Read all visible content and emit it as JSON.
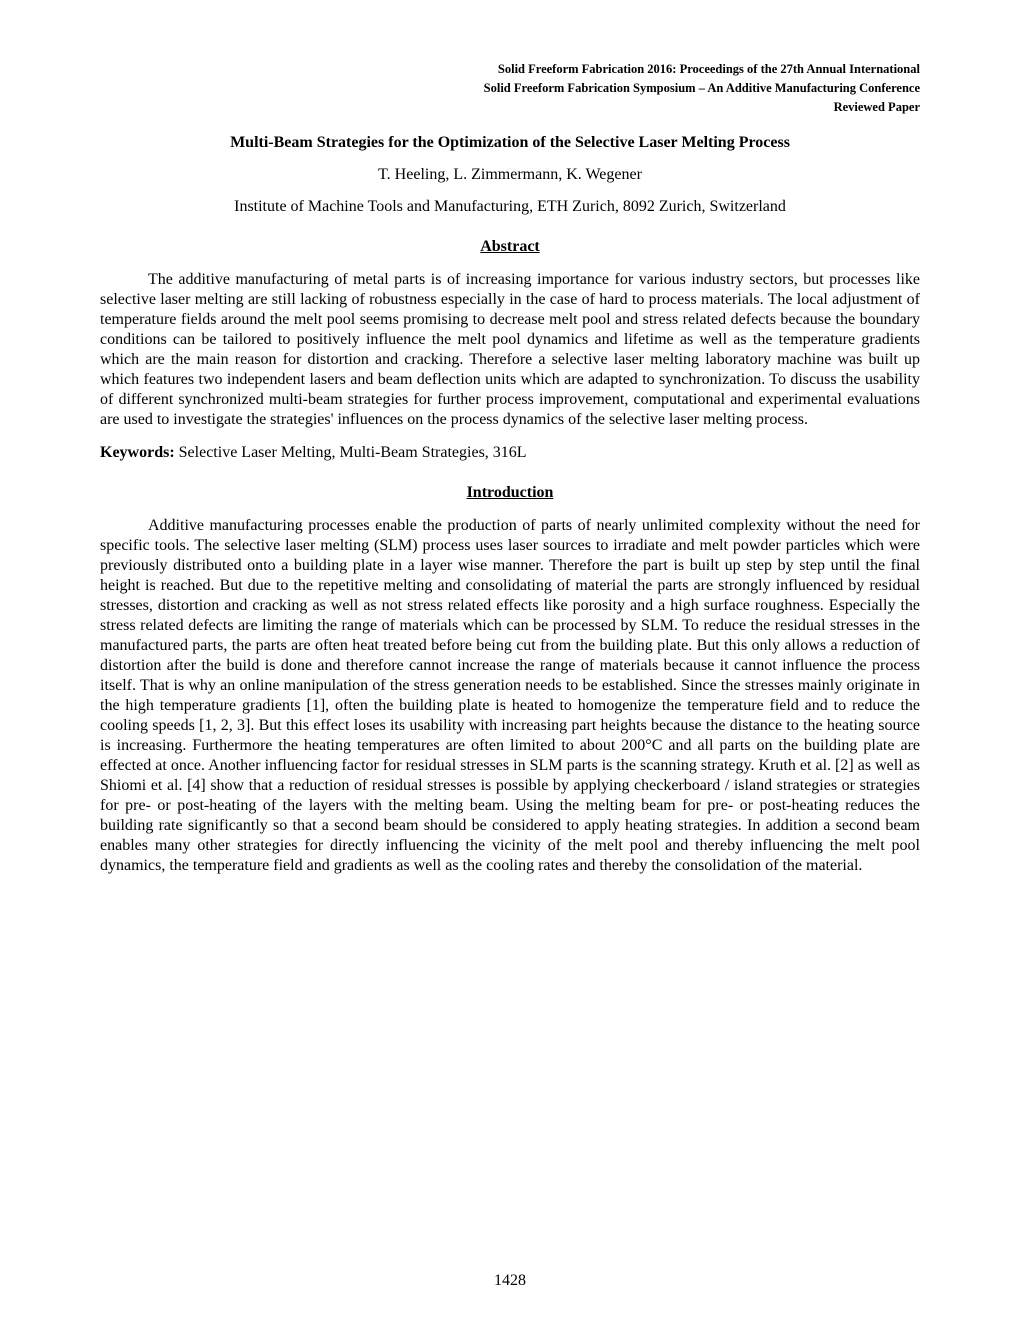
{
  "header": {
    "line1": "Solid Freeform Fabrication 2016: Proceedings of the 27th Annual International",
    "line2": "Solid Freeform Fabrication Symposium – An Additive Manufacturing Conference",
    "line3": "Reviewed Paper"
  },
  "title": "Multi-Beam Strategies for the Optimization of the Selective Laser Melting Process",
  "authors": "T. Heeling, L. Zimmermann, K. Wegener",
  "affiliation": "Institute of Machine Tools and Manufacturing, ETH Zurich, 8092 Zurich, Switzerland",
  "sections": {
    "abstract_heading": "Abstract",
    "abstract_text": "The additive manufacturing of metal parts is of increasing importance for various industry sectors, but processes like selective laser melting are still lacking of robustness especially in the case of hard to process materials. The local adjustment of temperature fields around the melt pool seems promising to decrease melt pool and stress related defects because the boundary conditions can be tailored to positively influence the melt pool dynamics and lifetime as well as the temperature gradients which are the main reason for distortion and cracking. Therefore a selective laser melting laboratory machine was built up which features two independent lasers and beam deflection units which are adapted to synchronization. To discuss the usability of different synchronized multi-beam strategies for further process improvement, computational and experimental evaluations are used to investigate the strategies' influences on the process dynamics of the selective laser melting process.",
    "keywords_label": "Keywords: ",
    "keywords_text": "Selective Laser Melting, Multi-Beam Strategies, 316L",
    "introduction_heading": "Introduction",
    "introduction_text": "Additive manufacturing processes enable the production of parts of nearly unlimited complexity without the need for specific tools. The selective laser melting (SLM) process uses laser sources to irradiate and melt powder particles which were previously distributed onto a building plate in a layer wise manner. Therefore the part is built up step by step until the final height is reached. But due to the repetitive melting and consolidating of material the parts are strongly influenced by residual stresses, distortion and cracking as well as not stress related effects like porosity and a high surface roughness. Especially the stress related defects are limiting the range of materials which can be processed by SLM. To reduce the residual stresses in the manufactured parts, the parts are often heat treated before being cut from the building plate. But this only allows a reduction of distortion after the build is done and therefore cannot increase the range of materials because it cannot influence the process itself. That is why an online manipulation of the stress generation needs to be established. Since the stresses mainly originate in the high temperature gradients [1], often the building plate is heated to homogenize the temperature field and to reduce the cooling speeds [1, 2, 3]. But this effect loses its usability with increasing part heights because the distance to the heating source is increasing. Furthermore the heating temperatures are often limited to about 200°C and all parts on the building plate are effected at once. Another influencing factor for residual stresses in SLM parts is the scanning strategy. Kruth et al. [2] as well as Shiomi et al. [4] show that a reduction of residual stresses is possible by applying checkerboard / island strategies or strategies for pre- or post-heating of the layers with the melting beam. Using the melting beam for pre- or post-heating reduces the building rate significantly so that a second beam should be considered to apply heating strategies. In addition a second beam enables many other strategies for directly influencing the vicinity of the melt pool and thereby influencing the melt pool dynamics, the temperature field and gradients as well as the cooling rates and thereby the consolidation of the material."
  },
  "page_number": "1428"
}
